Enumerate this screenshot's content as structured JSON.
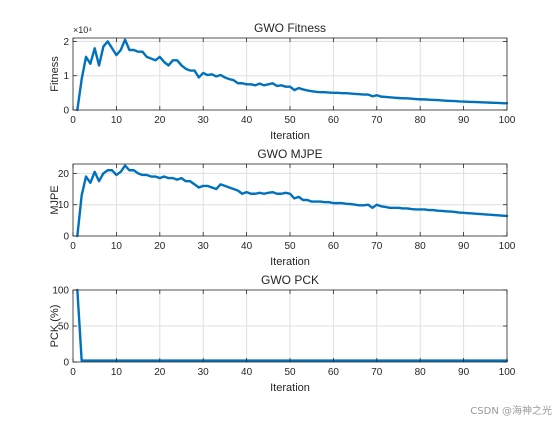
{
  "chart_data": [
    {
      "type": "line",
      "title": "GWO Fitness",
      "xlabel": "Iteration",
      "ylabel": "Fitness",
      "exponent_label": "×10⁴",
      "xlim": [
        0,
        100
      ],
      "ylim": [
        0,
        21000
      ],
      "xticks": [
        0,
        10,
        20,
        30,
        40,
        50,
        60,
        70,
        80,
        90,
        100
      ],
      "yticks": [
        0,
        10000,
        20000
      ],
      "ytick_labels": [
        "0",
        "1",
        "2"
      ],
      "grid": true,
      "series": [
        {
          "color": "#0072BD",
          "x": [
            1,
            2,
            3,
            4,
            5,
            6,
            7,
            8,
            9,
            10,
            11,
            12,
            13,
            14,
            15,
            16,
            17,
            18,
            19,
            20,
            21,
            22,
            23,
            24,
            25,
            26,
            27,
            28,
            29,
            30,
            31,
            32,
            33,
            34,
            35,
            36,
            37,
            38,
            39,
            40,
            41,
            42,
            43,
            44,
            45,
            46,
            47,
            48,
            49,
            50,
            51,
            52,
            53,
            54,
            55,
            56,
            57,
            58,
            59,
            60,
            61,
            62,
            63,
            64,
            65,
            66,
            67,
            68,
            69,
            70,
            71,
            72,
            73,
            74,
            75,
            76,
            77,
            78,
            79,
            80,
            81,
            82,
            83,
            84,
            85,
            86,
            87,
            88,
            89,
            90,
            91,
            92,
            93,
            94,
            95,
            96,
            97,
            98,
            99,
            100
          ],
          "y": [
            0,
            9000,
            15500,
            13500,
            18000,
            13000,
            18500,
            20000,
            18000,
            16000,
            17500,
            20500,
            17500,
            17500,
            17000,
            17000,
            15500,
            15000,
            14500,
            15500,
            14000,
            13000,
            14500,
            14500,
            13000,
            12000,
            11500,
            11500,
            9500,
            10800,
            10200,
            10400,
            9800,
            10200,
            9500,
            9000,
            8700,
            7800,
            7800,
            7500,
            7500,
            7200,
            7700,
            7200,
            7500,
            7800,
            7000,
            7200,
            6800,
            6800,
            5800,
            6400,
            6000,
            5700,
            5500,
            5300,
            5200,
            5200,
            5100,
            5000,
            5000,
            4900,
            4900,
            4800,
            4700,
            4600,
            4500,
            4500,
            4000,
            4300,
            3900,
            3800,
            3700,
            3600,
            3500,
            3400,
            3400,
            3300,
            3200,
            3100,
            3100,
            3000,
            2950,
            2900,
            2800,
            2700,
            2650,
            2600,
            2500,
            2450,
            2400,
            2350,
            2300,
            2250,
            2200,
            2150,
            2100,
            2050,
            2000,
            1950
          ]
        }
      ]
    },
    {
      "type": "line",
      "title": "GWO MJPE",
      "xlabel": "Iteration",
      "ylabel": "MJPE",
      "xlim": [
        0,
        100
      ],
      "ylim": [
        0,
        23
      ],
      "xticks": [
        0,
        10,
        20,
        30,
        40,
        50,
        60,
        70,
        80,
        90,
        100
      ],
      "yticks": [
        0,
        10,
        20
      ],
      "ytick_labels": [
        "0",
        "10",
        "20"
      ],
      "grid": true,
      "series": [
        {
          "color": "#0072BD",
          "x": [
            1,
            2,
            3,
            4,
            5,
            6,
            7,
            8,
            9,
            10,
            11,
            12,
            13,
            14,
            15,
            16,
            17,
            18,
            19,
            20,
            21,
            22,
            23,
            24,
            25,
            26,
            27,
            28,
            29,
            30,
            31,
            32,
            33,
            34,
            35,
            36,
            37,
            38,
            39,
            40,
            41,
            42,
            43,
            44,
            45,
            46,
            47,
            48,
            49,
            50,
            51,
            52,
            53,
            54,
            55,
            56,
            57,
            58,
            59,
            60,
            61,
            62,
            63,
            64,
            65,
            66,
            67,
            68,
            69,
            70,
            71,
            72,
            73,
            74,
            75,
            76,
            77,
            78,
            79,
            80,
            81,
            82,
            83,
            84,
            85,
            86,
            87,
            88,
            89,
            90,
            91,
            92,
            93,
            94,
            95,
            96,
            97,
            98,
            99,
            100
          ],
          "y": [
            0,
            13,
            19,
            17,
            20.5,
            17.5,
            20,
            21,
            21,
            19.5,
            20.5,
            22.5,
            21,
            21,
            20,
            19.5,
            19.5,
            19,
            19,
            18.5,
            19,
            18.5,
            18.5,
            18,
            18.5,
            17.5,
            17.5,
            16.5,
            15.5,
            16,
            16,
            15.5,
            15,
            16.5,
            16,
            15.5,
            15,
            14.5,
            13.5,
            14,
            13.5,
            13.5,
            13.8,
            13.5,
            13.8,
            14,
            13.5,
            13.5,
            13.8,
            13.5,
            12,
            12.5,
            11.5,
            11.5,
            11,
            11,
            11,
            10.8,
            10.8,
            10.5,
            10.5,
            10.5,
            10.3,
            10.2,
            10,
            9.8,
            9.8,
            10,
            9,
            10,
            9.5,
            9.3,
            9,
            9,
            9,
            8.8,
            8.8,
            8.6,
            8.5,
            8.5,
            8.5,
            8.3,
            8.3,
            8.1,
            8,
            7.9,
            7.8,
            7.7,
            7.5,
            7.4,
            7.3,
            7.2,
            7.1,
            7,
            6.9,
            6.8,
            6.7,
            6.6,
            6.5,
            6.4
          ]
        }
      ]
    },
    {
      "type": "line",
      "title": "GWO PCK",
      "xlabel": "Iteration",
      "ylabel": "PCK (%)",
      "xlim": [
        0,
        100
      ],
      "ylim": [
        0,
        100
      ],
      "xticks": [
        0,
        10,
        20,
        30,
        40,
        50,
        60,
        70,
        80,
        90,
        100
      ],
      "yticks": [
        0,
        50,
        100
      ],
      "ytick_labels": [
        "0",
        "50",
        "100"
      ],
      "grid": true,
      "series": [
        {
          "color": "#0072BD",
          "x": [
            1,
            2,
            3,
            4,
            5,
            6,
            7,
            8,
            9,
            10,
            11,
            12,
            13,
            14,
            15,
            16,
            17,
            18,
            19,
            20,
            21,
            22,
            23,
            24,
            25,
            26,
            27,
            28,
            29,
            30,
            31,
            32,
            33,
            34,
            35,
            36,
            37,
            38,
            39,
            40,
            41,
            42,
            43,
            44,
            45,
            46,
            47,
            48,
            49,
            50,
            51,
            52,
            53,
            54,
            55,
            56,
            57,
            58,
            59,
            60,
            61,
            62,
            63,
            64,
            65,
            66,
            67,
            68,
            69,
            70,
            71,
            72,
            73,
            74,
            75,
            76,
            77,
            78,
            79,
            80,
            81,
            82,
            83,
            84,
            85,
            86,
            87,
            88,
            89,
            90,
            91,
            92,
            93,
            94,
            95,
            96,
            97,
            98,
            99,
            100
          ],
          "y": [
            100,
            2,
            2,
            2,
            2,
            2,
            2,
            2,
            2,
            2,
            2,
            2,
            2,
            2,
            2,
            2,
            2,
            2,
            2,
            2,
            2,
            2,
            2,
            2,
            2,
            2,
            2,
            2,
            2,
            2,
            2,
            2,
            2,
            2,
            2,
            2,
            2,
            2,
            2,
            2,
            2,
            2,
            2,
            2,
            2,
            2,
            2,
            2,
            2,
            2,
            2,
            2,
            2,
            2,
            2,
            2,
            2,
            2,
            2,
            2,
            2,
            2,
            2,
            2,
            2,
            2,
            2,
            2,
            2,
            2,
            2,
            2,
            2,
            2,
            2,
            2,
            2,
            2,
            2,
            2,
            2,
            2,
            2,
            2,
            2,
            2,
            2,
            2,
            2,
            2,
            2,
            2,
            2,
            2,
            2,
            2,
            2,
            2,
            2,
            2
          ]
        }
      ]
    }
  ],
  "watermark": "CSDN @海神之光"
}
